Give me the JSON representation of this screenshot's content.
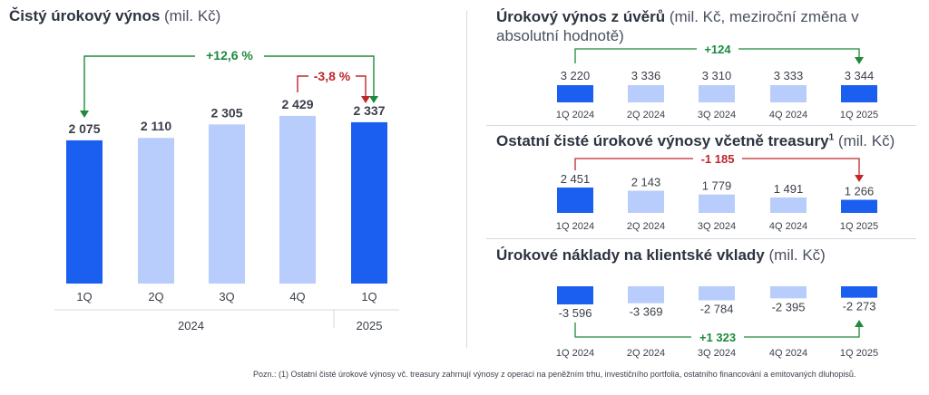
{
  "colors": {
    "highlight": "#1a5ff0",
    "light": "#b8cdfb",
    "positive": "#1e8a3c",
    "negative": "#c0262c",
    "separator": "#d6d9df"
  },
  "chart_data": [
    {
      "type": "bar",
      "title": "Čistý úrokový výnos",
      "unit": "(mil. Kč)",
      "categories": [
        "1Q",
        "2Q",
        "3Q",
        "4Q",
        "1Q"
      ],
      "groups": [
        {
          "label": "2024",
          "span": [
            0,
            3
          ]
        },
        {
          "label": "2025",
          "span": [
            4,
            4
          ]
        }
      ],
      "values": [
        2075,
        2110,
        2305,
        2429,
        2337
      ],
      "value_labels": [
        "2 075",
        "2 110",
        "2 305",
        "2 429",
        "2 337"
      ],
      "highlight": [
        0,
        4
      ],
      "annotations": [
        {
          "text": "+12,6 %",
          "from": 0,
          "to": 4,
          "sign": "positive"
        },
        {
          "text": "-3,8 %",
          "from": 3,
          "to": 4,
          "sign": "negative"
        }
      ]
    },
    {
      "type": "bar",
      "title": "Úrokový výnos z úvěrů",
      "unit": "(mil. Kč, meziroční změna v absolutní hodnotě)",
      "categories": [
        "1Q 2024",
        "2Q 2024",
        "3Q 2024",
        "4Q 2024",
        "1Q 2025"
      ],
      "values": [
        3220,
        3336,
        3310,
        3333,
        3344
      ],
      "value_labels": [
        "3 220",
        "3 336",
        "3 310",
        "3 333",
        "3 344"
      ],
      "highlight": [
        0,
        4
      ],
      "annotations": [
        {
          "text": "+124",
          "from": 0,
          "to": 4,
          "sign": "positive"
        }
      ]
    },
    {
      "type": "bar",
      "title": "Ostatní čisté úrokové výnosy včetně treasury",
      "title_sup": "1",
      "unit": "(mil. Kč)",
      "categories": [
        "1Q 2024",
        "2Q 2024",
        "3Q 2024",
        "4Q 2024",
        "1Q 2025"
      ],
      "values": [
        2451,
        2143,
        1779,
        1491,
        1266
      ],
      "value_labels": [
        "2 451",
        "2 143",
        "1 779",
        "1 491",
        "1 266"
      ],
      "highlight": [
        0,
        4
      ],
      "annotations": [
        {
          "text": "-1 185",
          "from": 0,
          "to": 4,
          "sign": "negative"
        }
      ]
    },
    {
      "type": "bar",
      "title": "Úrokové náklady na klientské vklady",
      "unit": "(mil. Kč)",
      "categories": [
        "1Q 2024",
        "2Q 2024",
        "3Q 2024",
        "4Q 2024",
        "1Q 2025"
      ],
      "values": [
        -3596,
        -3369,
        -2784,
        -2395,
        -2273
      ],
      "value_labels": [
        "-3 596",
        "-3 369",
        "-2 784",
        "-2 395",
        "-2 273"
      ],
      "highlight": [
        0,
        4
      ],
      "annotations": [
        {
          "text": "+1 323",
          "from": 0,
          "to": 4,
          "sign": "positive"
        }
      ]
    }
  ],
  "footnote": "Pozn.: (1) Ostatní čisté úrokové výnosy vč. treasury zahrnují výnosy z operací na peněžním trhu, investičního portfolia, ostatního financování a emitovaných dluhopisů."
}
